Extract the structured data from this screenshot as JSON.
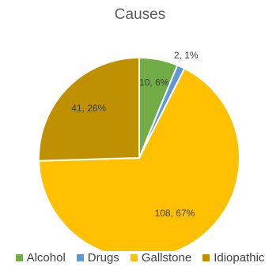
{
  "chart_data": {
    "type": "pie",
    "title": "Causes",
    "slices": [
      {
        "name": "Alcohol",
        "value": 10,
        "percent": 6,
        "label": "10, 6%",
        "color": "#70AD47"
      },
      {
        "name": "Drugs",
        "value": 2,
        "percent": 1,
        "label": "2, 1%",
        "color": "#5B9BD5"
      },
      {
        "name": "Gallstone",
        "value": 108,
        "percent": 67,
        "label": "108, 67%",
        "color": "#FFC000"
      },
      {
        "name": "Idiopathic",
        "value": 41,
        "percent": 26,
        "label": "41, 26%",
        "color": "#BF9000"
      }
    ],
    "legend_position": "bottom",
    "legend_labels": [
      "Alcohol",
      "Drugs",
      "Gallstone",
      "Idiopathic"
    ]
  }
}
